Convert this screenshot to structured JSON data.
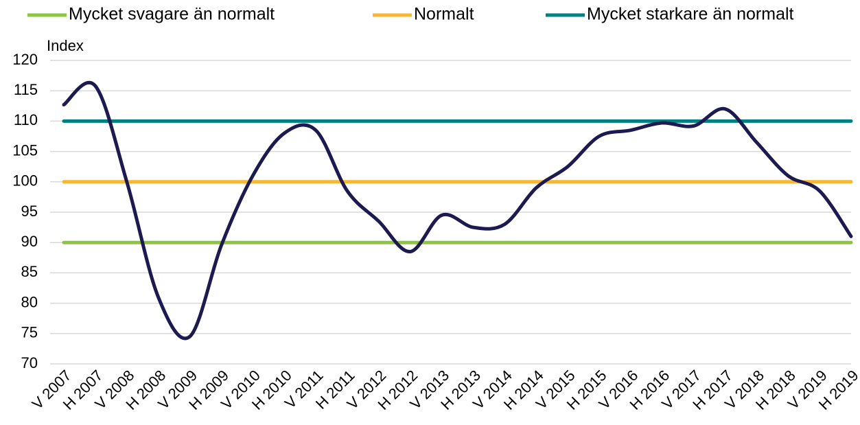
{
  "chart_data": {
    "type": "line",
    "y_label": "Index",
    "categories": [
      "V 2007",
      "H 2007",
      "V 2008",
      "H 2008",
      "V 2009",
      "H 2009",
      "V 2010",
      "H 2010",
      "V 2011",
      "H 2011",
      "V 2012",
      "H 2012",
      "V 2013",
      "H 2013",
      "V 2014",
      "H 2014",
      "V 2015",
      "H 2015",
      "V 2016",
      "H 2016",
      "V 2017",
      "H 2017",
      "V 2018",
      "H 2018",
      "V 2019",
      "H 2019"
    ],
    "series": [
      {
        "name": "Mycket svagare än normalt",
        "color": "#8cc63f",
        "values": [
          90,
          90,
          90,
          90,
          90,
          90,
          90,
          90,
          90,
          90,
          90,
          90,
          90,
          90,
          90,
          90,
          90,
          90,
          90,
          90,
          90,
          90,
          90,
          90,
          90,
          90
        ]
      },
      {
        "name": "Normalt",
        "color": "#f7b733",
        "values": [
          100,
          100,
          100,
          100,
          100,
          100,
          100,
          100,
          100,
          100,
          100,
          100,
          100,
          100,
          100,
          100,
          100,
          100,
          100,
          100,
          100,
          100,
          100,
          100,
          100,
          100
        ]
      },
      {
        "name": "Mycket starkare än normalt",
        "color": "#008080",
        "values": [
          110,
          110,
          110,
          110,
          110,
          110,
          110,
          110,
          110,
          110,
          110,
          110,
          110,
          110,
          110,
          110,
          110,
          110,
          110,
          110,
          110,
          110,
          110,
          110,
          110,
          110
        ]
      },
      {
        "color": "#1c1a4f",
        "values": [
          112.7,
          115.8,
          100,
          81,
          74.5,
          89.5,
          101,
          108,
          108.5,
          98.5,
          93.5,
          88.5,
          94.5,
          92.5,
          93,
          99,
          102.5,
          107.5,
          108.5,
          109.7,
          109.2,
          112,
          106.5,
          101,
          98.5,
          91
        ]
      }
    ],
    "ylim": [
      70,
      120
    ],
    "yticks": [
      70,
      75,
      80,
      85,
      90,
      95,
      100,
      105,
      110,
      115,
      120
    ],
    "grid": true
  }
}
